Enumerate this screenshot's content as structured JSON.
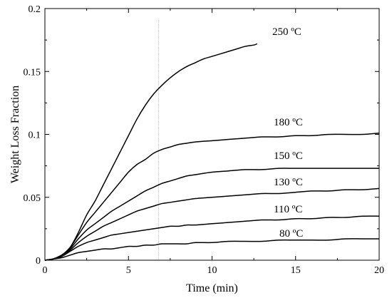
{
  "chart_data": {
    "type": "line",
    "title": "",
    "xlabel": "Time (min)",
    "ylabel": "Weight Loss Fraction",
    "xlim": [
      0,
      20
    ],
    "ylim": [
      0,
      0.2
    ],
    "xticks": [
      0,
      5,
      10,
      15,
      20
    ],
    "xtick_labels": [
      "0",
      "5",
      "10",
      "15",
      "20"
    ],
    "yticks": [
      0,
      0.05,
      0.1,
      0.15,
      0.2
    ],
    "ytick_labels": [
      "0",
      "0.05",
      "0.1",
      "0.15",
      "0.2"
    ],
    "grid": false,
    "annotations": [
      {
        "type": "vertical-line",
        "x": 6.8,
        "color": "#c8c8c8"
      }
    ],
    "series": [
      {
        "name": "250 ºC",
        "x": [
          0,
          0.5,
          1,
          1.5,
          2,
          2.5,
          3,
          3.5,
          4,
          4.5,
          5,
          5.5,
          6,
          6.5,
          7,
          7.5,
          8,
          8.5,
          9,
          9.5,
          10,
          10.5,
          11,
          11.5,
          12,
          12.5,
          12.7
        ],
        "y": [
          0,
          0.001,
          0.004,
          0.01,
          0.022,
          0.036,
          0.047,
          0.06,
          0.073,
          0.086,
          0.099,
          0.112,
          0.123,
          0.132,
          0.139,
          0.145,
          0.15,
          0.154,
          0.157,
          0.16,
          0.162,
          0.164,
          0.166,
          0.168,
          0.17,
          0.171,
          0.172
        ]
      },
      {
        "name": "180 ºC",
        "x": [
          0,
          0.5,
          1,
          1.5,
          2,
          2.5,
          3,
          3.5,
          4,
          4.5,
          5,
          5.5,
          6,
          6.5,
          7,
          7.5,
          8,
          8.5,
          9,
          10,
          11,
          12,
          13,
          14,
          15,
          16,
          17,
          18,
          19,
          20
        ],
        "y": [
          0,
          0.001,
          0.004,
          0.01,
          0.02,
          0.03,
          0.038,
          0.046,
          0.054,
          0.062,
          0.07,
          0.076,
          0.08,
          0.085,
          0.088,
          0.09,
          0.092,
          0.093,
          0.094,
          0.095,
          0.096,
          0.097,
          0.098,
          0.098,
          0.099,
          0.099,
          0.1,
          0.1,
          0.1,
          0.101
        ]
      },
      {
        "name": "150 ºC",
        "x": [
          0,
          0.5,
          1,
          1.5,
          2,
          2.5,
          3,
          3.5,
          4,
          4.5,
          5,
          5.5,
          6,
          6.5,
          7,
          7.5,
          8,
          8.5,
          9,
          10,
          11,
          12,
          13,
          14,
          15,
          16,
          17,
          18,
          19,
          20
        ],
        "y": [
          0,
          0.001,
          0.004,
          0.009,
          0.017,
          0.024,
          0.029,
          0.034,
          0.039,
          0.043,
          0.047,
          0.051,
          0.055,
          0.058,
          0.061,
          0.063,
          0.065,
          0.067,
          0.068,
          0.07,
          0.071,
          0.072,
          0.072,
          0.073,
          0.073,
          0.073,
          0.073,
          0.073,
          0.073,
          0.073
        ]
      },
      {
        "name": "130 ºC",
        "x": [
          0,
          0.5,
          1,
          1.5,
          2,
          2.5,
          3,
          3.5,
          4,
          4.5,
          5,
          5.5,
          6,
          6.5,
          7,
          7.5,
          8,
          8.5,
          9,
          10,
          11,
          12,
          13,
          14,
          15,
          16,
          17,
          18,
          19,
          20
        ],
        "y": [
          0,
          0.001,
          0.004,
          0.008,
          0.014,
          0.019,
          0.023,
          0.027,
          0.03,
          0.033,
          0.036,
          0.039,
          0.041,
          0.043,
          0.045,
          0.046,
          0.047,
          0.048,
          0.049,
          0.05,
          0.051,
          0.052,
          0.053,
          0.053,
          0.054,
          0.055,
          0.055,
          0.056,
          0.056,
          0.057
        ]
      },
      {
        "name": "110 ºC",
        "x": [
          0,
          0.5,
          1,
          1.5,
          2,
          2.5,
          3,
          3.5,
          4,
          4.5,
          5,
          5.5,
          6,
          6.5,
          7,
          7.5,
          8,
          8.5,
          9,
          10,
          11,
          12,
          13,
          14,
          15,
          16,
          17,
          18,
          19,
          20
        ],
        "y": [
          0,
          0.001,
          0.003,
          0.007,
          0.011,
          0.014,
          0.016,
          0.018,
          0.02,
          0.021,
          0.022,
          0.023,
          0.024,
          0.025,
          0.026,
          0.027,
          0.027,
          0.028,
          0.028,
          0.029,
          0.03,
          0.031,
          0.032,
          0.032,
          0.033,
          0.033,
          0.034,
          0.034,
          0.035,
          0.035
        ]
      },
      {
        "name": "80 ºC",
        "x": [
          0,
          0.5,
          1,
          1.5,
          2,
          2.5,
          3,
          3.5,
          4,
          4.5,
          5,
          5.5,
          6,
          6.5,
          7,
          7.5,
          8,
          8.5,
          9,
          10,
          11,
          12,
          13,
          14,
          15,
          16,
          17,
          18,
          19,
          20
        ],
        "y": [
          0,
          0.001,
          0.002,
          0.004,
          0.006,
          0.007,
          0.008,
          0.009,
          0.009,
          0.01,
          0.011,
          0.011,
          0.012,
          0.012,
          0.013,
          0.013,
          0.013,
          0.013,
          0.014,
          0.014,
          0.015,
          0.015,
          0.015,
          0.016,
          0.016,
          0.016,
          0.016,
          0.017,
          0.017,
          0.017
        ]
      }
    ]
  }
}
